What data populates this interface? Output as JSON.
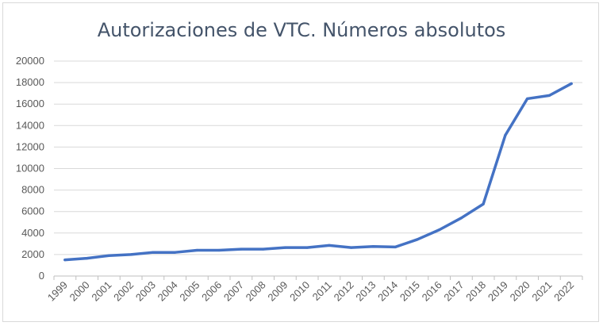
{
  "chart_data": {
    "type": "line",
    "title": "Autorizaciones de VTC. Números absolutos",
    "xlabel": "",
    "ylabel": "",
    "ylim": [
      0,
      20000
    ],
    "yticks": [
      0,
      2000,
      4000,
      6000,
      8000,
      10000,
      12000,
      14000,
      16000,
      18000,
      20000
    ],
    "grid": true,
    "legend": "none",
    "line_color": "#4472c4",
    "categories": [
      "1999",
      "2000",
      "2001",
      "2002",
      "2003",
      "2004",
      "2005",
      "2006",
      "2007",
      "2008",
      "2009",
      "2010",
      "2011",
      "2012",
      "2013",
      "2014",
      "2015",
      "2016",
      "2017",
      "2018",
      "2019",
      "2020",
      "2021",
      "2022"
    ],
    "series": [
      {
        "values": [
          1500,
          1650,
          1900,
          2000,
          2200,
          2200,
          2400,
          2400,
          2500,
          2500,
          2650,
          2650,
          2850,
          2650,
          2750,
          2700,
          3400,
          4300,
          5400,
          6700,
          13100,
          16500,
          16800,
          17900
        ]
      }
    ]
  }
}
